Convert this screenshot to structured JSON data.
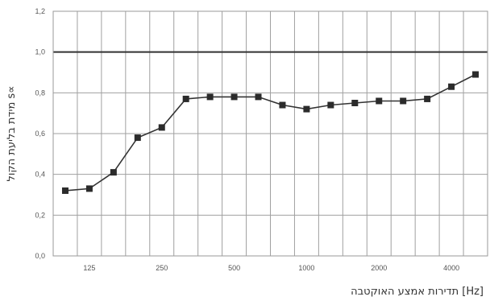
{
  "chart_data": {
    "type": "line",
    "ylabel": "מידת בליעת הקול s∝",
    "xlabel": "תדירות אמצע האוקטבה [Hz]",
    "ylim": [
      0,
      1.2
    ],
    "y_ticks": [
      "0,0",
      "0,2",
      "0,4",
      "0,6",
      "0,8",
      "1,0",
      "1,2"
    ],
    "x_tick_labels": [
      "125",
      "250",
      "500",
      "1000",
      "2000",
      "4000"
    ],
    "x": [
      100,
      125,
      160,
      200,
      250,
      315,
      400,
      500,
      630,
      800,
      1000,
      1250,
      1600,
      2000,
      2500,
      3150,
      4000,
      5000
    ],
    "series": [
      {
        "values": [
          0.32,
          0.33,
          0.41,
          0.58,
          0.63,
          0.77,
          0.78,
          0.78,
          0.78,
          0.74,
          0.72,
          0.74,
          0.75,
          0.76,
          0.76,
          0.77,
          0.83,
          0.89
        ]
      }
    ],
    "x_scale": "log",
    "grid": true,
    "reference_line_value": 1.0,
    "colors": {
      "line": "#333333",
      "marker": "#2b2b2b",
      "grid": "#a0a0a0",
      "reference": "#333333"
    }
  }
}
